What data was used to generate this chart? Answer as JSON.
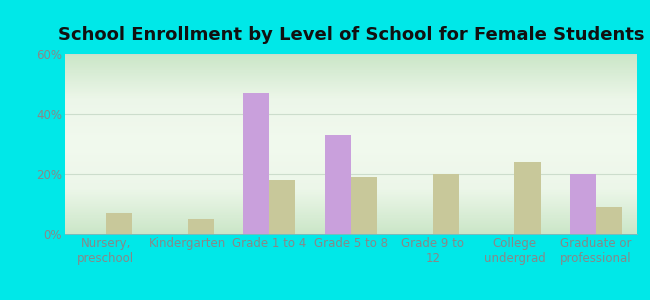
{
  "title": "School Enrollment by Level of School for Female Students",
  "categories": [
    "Nursery,\npreschool",
    "Kindergarten",
    "Grade 1 to 4",
    "Grade 5 to 8",
    "Grade 9 to\n12",
    "College\nundergrad",
    "Graduate or\nprofessional"
  ],
  "cherry_creek": [
    0,
    0,
    47,
    33,
    0,
    0,
    20
  ],
  "new_york": [
    7,
    5,
    18,
    19,
    20,
    24,
    9
  ],
  "cherry_creek_color": "#c9a0dc",
  "new_york_color": "#c8c89a",
  "background_outer": "#00e8e8",
  "background_inner_top": "#e8f5e0",
  "background_inner_bottom": "#d8f0d0",
  "ylim": [
    0,
    60
  ],
  "yticks": [
    0,
    20,
    40,
    60
  ],
  "ytick_labels": [
    "0%",
    "20%",
    "40%",
    "60%"
  ],
  "bar_width": 0.32,
  "title_fontsize": 13,
  "axis_fontsize": 8.5,
  "legend_fontsize": 9.5,
  "tick_color": "#888888",
  "grid_color": "#ccddcc"
}
